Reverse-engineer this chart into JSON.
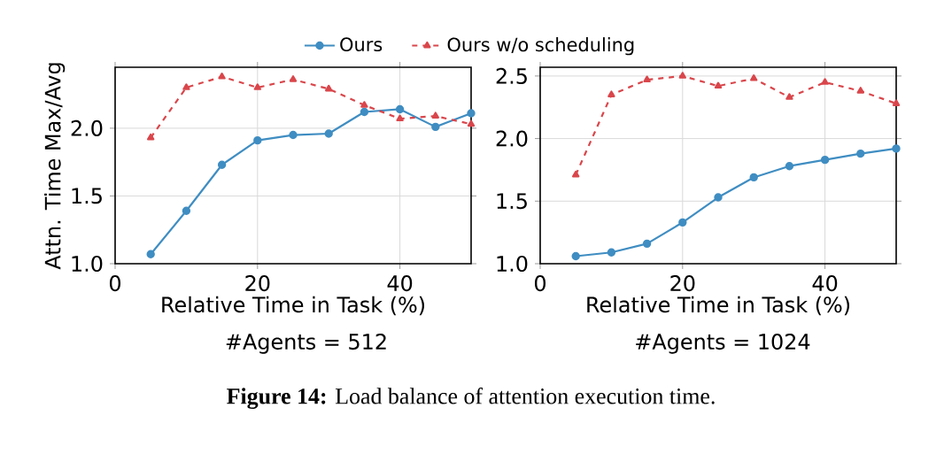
{
  "chart_data": [
    {
      "type": "line",
      "title": "#Agents = 512",
      "xlabel": "Relative Time in Task (%)",
      "ylabel": "Attn. Time Max/Avg",
      "x": [
        5,
        10,
        15,
        20,
        25,
        30,
        35,
        40,
        45,
        50
      ],
      "series": [
        {
          "name": "Ours",
          "color": "#3f8dc2",
          "marker": "circle",
          "line_style": "solid",
          "values": [
            1.07,
            1.39,
            1.73,
            1.91,
            1.95,
            1.96,
            2.12,
            2.14,
            2.01,
            2.11
          ]
        },
        {
          "name": "Ours w/o scheduling",
          "color": "#d9464b",
          "marker": "triangle",
          "line_style": "dashed",
          "values": [
            1.93,
            2.3,
            2.38,
            2.3,
            2.36,
            2.29,
            2.17,
            2.07,
            2.09,
            2.03
          ]
        }
      ],
      "xlim": [
        0,
        50
      ],
      "ylim": [
        1.0,
        2.45
      ],
      "xticks": [
        0,
        20,
        40
      ],
      "yticks": [
        {
          "value": 1.0,
          "label": "1.0"
        },
        {
          "value": 1.5,
          "label": "1.5"
        },
        {
          "value": 2.0,
          "label": "2.0"
        }
      ],
      "grid": true,
      "legend": "top",
      "annotations": [
        "**Figure 14:** Load balance of attention execution time."
      ]
    },
    {
      "type": "line",
      "title": "#Agents = 1024",
      "xlabel": "Relative Time in Task (%)",
      "x": [
        5,
        10,
        15,
        20,
        25,
        30,
        35,
        40,
        45,
        50
      ],
      "series": [
        {
          "color": "#3f8dc2",
          "marker": "circle",
          "line_style": "solid",
          "values": [
            1.06,
            1.09,
            1.16,
            1.33,
            1.53,
            1.69,
            1.78,
            1.83,
            1.88,
            1.92
          ]
        },
        {
          "color": "#d9464b",
          "marker": "triangle",
          "line_style": "dashed",
          "values": [
            1.71,
            2.35,
            2.47,
            2.5,
            2.42,
            2.48,
            2.33,
            2.45,
            2.38,
            2.28
          ]
        }
      ],
      "xlim": [
        0,
        50
      ],
      "ylim": [
        1.0,
        2.57
      ],
      "xticks": [
        0,
        20,
        40
      ],
      "yticks": [
        {
          "value": 1.0,
          "label": "1.0"
        },
        {
          "value": 1.5,
          "label": "1.5"
        },
        {
          "value": 2.0,
          "label": "2.0"
        },
        {
          "value": 2.5,
          "label": "2.5"
        }
      ],
      "grid": true,
      "legend": false
    }
  ]
}
